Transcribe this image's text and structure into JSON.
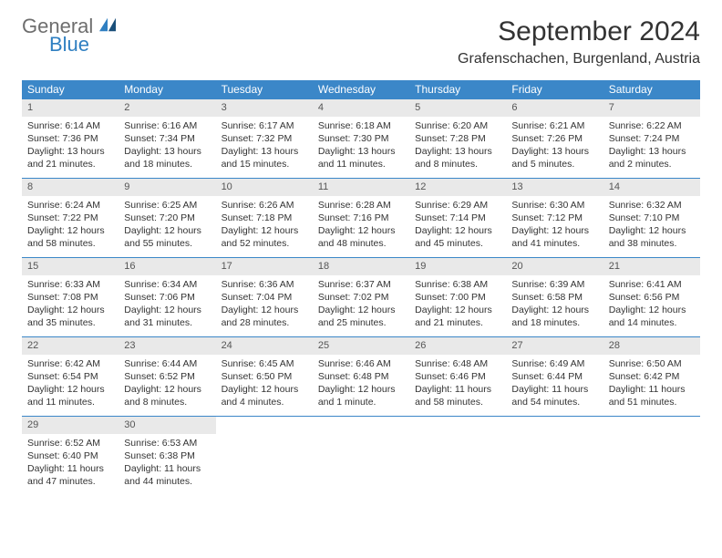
{
  "logo": {
    "general": "General",
    "blue": "Blue"
  },
  "title": "September 2024",
  "location": "Grafenschachen, Burgenland, Austria",
  "colors": {
    "header_bg": "#3b87c8",
    "header_text": "#ffffff",
    "daynum_bg": "#e9e9e9",
    "text": "#333333",
    "logo_gray": "#6e6e6e",
    "logo_blue": "#2f7fc1",
    "border": "#3b87c8"
  },
  "dow": [
    "Sunday",
    "Monday",
    "Tuesday",
    "Wednesday",
    "Thursday",
    "Friday",
    "Saturday"
  ],
  "weeks": [
    [
      {
        "n": "1",
        "sr": "Sunrise: 6:14 AM",
        "ss": "Sunset: 7:36 PM",
        "dl": "Daylight: 13 hours and 21 minutes."
      },
      {
        "n": "2",
        "sr": "Sunrise: 6:16 AM",
        "ss": "Sunset: 7:34 PM",
        "dl": "Daylight: 13 hours and 18 minutes."
      },
      {
        "n": "3",
        "sr": "Sunrise: 6:17 AM",
        "ss": "Sunset: 7:32 PM",
        "dl": "Daylight: 13 hours and 15 minutes."
      },
      {
        "n": "4",
        "sr": "Sunrise: 6:18 AM",
        "ss": "Sunset: 7:30 PM",
        "dl": "Daylight: 13 hours and 11 minutes."
      },
      {
        "n": "5",
        "sr": "Sunrise: 6:20 AM",
        "ss": "Sunset: 7:28 PM",
        "dl": "Daylight: 13 hours and 8 minutes."
      },
      {
        "n": "6",
        "sr": "Sunrise: 6:21 AM",
        "ss": "Sunset: 7:26 PM",
        "dl": "Daylight: 13 hours and 5 minutes."
      },
      {
        "n": "7",
        "sr": "Sunrise: 6:22 AM",
        "ss": "Sunset: 7:24 PM",
        "dl": "Daylight: 13 hours and 2 minutes."
      }
    ],
    [
      {
        "n": "8",
        "sr": "Sunrise: 6:24 AM",
        "ss": "Sunset: 7:22 PM",
        "dl": "Daylight: 12 hours and 58 minutes."
      },
      {
        "n": "9",
        "sr": "Sunrise: 6:25 AM",
        "ss": "Sunset: 7:20 PM",
        "dl": "Daylight: 12 hours and 55 minutes."
      },
      {
        "n": "10",
        "sr": "Sunrise: 6:26 AM",
        "ss": "Sunset: 7:18 PM",
        "dl": "Daylight: 12 hours and 52 minutes."
      },
      {
        "n": "11",
        "sr": "Sunrise: 6:28 AM",
        "ss": "Sunset: 7:16 PM",
        "dl": "Daylight: 12 hours and 48 minutes."
      },
      {
        "n": "12",
        "sr": "Sunrise: 6:29 AM",
        "ss": "Sunset: 7:14 PM",
        "dl": "Daylight: 12 hours and 45 minutes."
      },
      {
        "n": "13",
        "sr": "Sunrise: 6:30 AM",
        "ss": "Sunset: 7:12 PM",
        "dl": "Daylight: 12 hours and 41 minutes."
      },
      {
        "n": "14",
        "sr": "Sunrise: 6:32 AM",
        "ss": "Sunset: 7:10 PM",
        "dl": "Daylight: 12 hours and 38 minutes."
      }
    ],
    [
      {
        "n": "15",
        "sr": "Sunrise: 6:33 AM",
        "ss": "Sunset: 7:08 PM",
        "dl": "Daylight: 12 hours and 35 minutes."
      },
      {
        "n": "16",
        "sr": "Sunrise: 6:34 AM",
        "ss": "Sunset: 7:06 PM",
        "dl": "Daylight: 12 hours and 31 minutes."
      },
      {
        "n": "17",
        "sr": "Sunrise: 6:36 AM",
        "ss": "Sunset: 7:04 PM",
        "dl": "Daylight: 12 hours and 28 minutes."
      },
      {
        "n": "18",
        "sr": "Sunrise: 6:37 AM",
        "ss": "Sunset: 7:02 PM",
        "dl": "Daylight: 12 hours and 25 minutes."
      },
      {
        "n": "19",
        "sr": "Sunrise: 6:38 AM",
        "ss": "Sunset: 7:00 PM",
        "dl": "Daylight: 12 hours and 21 minutes."
      },
      {
        "n": "20",
        "sr": "Sunrise: 6:39 AM",
        "ss": "Sunset: 6:58 PM",
        "dl": "Daylight: 12 hours and 18 minutes."
      },
      {
        "n": "21",
        "sr": "Sunrise: 6:41 AM",
        "ss": "Sunset: 6:56 PM",
        "dl": "Daylight: 12 hours and 14 minutes."
      }
    ],
    [
      {
        "n": "22",
        "sr": "Sunrise: 6:42 AM",
        "ss": "Sunset: 6:54 PM",
        "dl": "Daylight: 12 hours and 11 minutes."
      },
      {
        "n": "23",
        "sr": "Sunrise: 6:44 AM",
        "ss": "Sunset: 6:52 PM",
        "dl": "Daylight: 12 hours and 8 minutes."
      },
      {
        "n": "24",
        "sr": "Sunrise: 6:45 AM",
        "ss": "Sunset: 6:50 PM",
        "dl": "Daylight: 12 hours and 4 minutes."
      },
      {
        "n": "25",
        "sr": "Sunrise: 6:46 AM",
        "ss": "Sunset: 6:48 PM",
        "dl": "Daylight: 12 hours and 1 minute."
      },
      {
        "n": "26",
        "sr": "Sunrise: 6:48 AM",
        "ss": "Sunset: 6:46 PM",
        "dl": "Daylight: 11 hours and 58 minutes."
      },
      {
        "n": "27",
        "sr": "Sunrise: 6:49 AM",
        "ss": "Sunset: 6:44 PM",
        "dl": "Daylight: 11 hours and 54 minutes."
      },
      {
        "n": "28",
        "sr": "Sunrise: 6:50 AM",
        "ss": "Sunset: 6:42 PM",
        "dl": "Daylight: 11 hours and 51 minutes."
      }
    ],
    [
      {
        "n": "29",
        "sr": "Sunrise: 6:52 AM",
        "ss": "Sunset: 6:40 PM",
        "dl": "Daylight: 11 hours and 47 minutes."
      },
      {
        "n": "30",
        "sr": "Sunrise: 6:53 AM",
        "ss": "Sunset: 6:38 PM",
        "dl": "Daylight: 11 hours and 44 minutes."
      },
      null,
      null,
      null,
      null,
      null
    ]
  ]
}
